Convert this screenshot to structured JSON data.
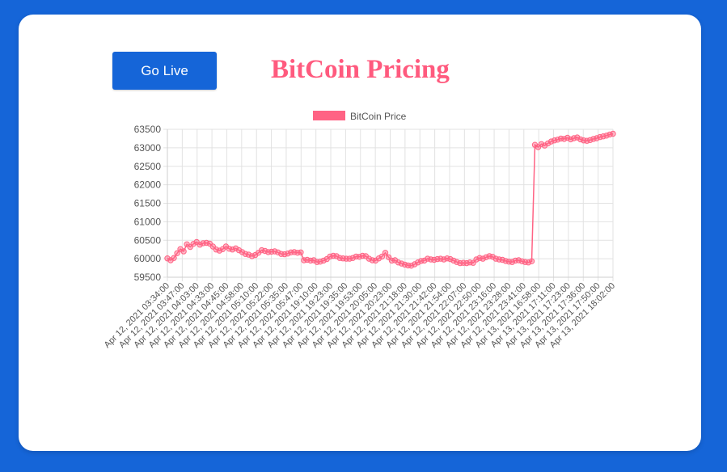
{
  "header": {
    "live_button_label": "Go Live",
    "title": "BitCoin Pricing"
  },
  "colors": {
    "background": "#1565d8",
    "button": "#1565d8",
    "title": "#ff5a7e",
    "series": "#ff6384"
  },
  "chart_data": {
    "type": "line",
    "legend": {
      "position": "top",
      "labels": [
        "BitCoin Price"
      ]
    },
    "grid": true,
    "ylim": [
      59500,
      63500
    ],
    "yticks": [
      63500,
      63000,
      62500,
      62000,
      61500,
      61000,
      60500,
      60000,
      59500
    ],
    "xticks": [
      "Apr 12, 2021 03:34:00",
      "Apr 12, 2021 03:47:00",
      "Apr 12, 2021 04:03:00",
      "Apr 12, 2021 04:33:00",
      "Apr 12, 2021 04:45:00",
      "Apr 12, 2021 04:58:00",
      "Apr 12, 2021 05:10:00",
      "Apr 12, 2021 05:22:00",
      "Apr 12, 2021 05:35:00",
      "Apr 12, 2021 05:47:00",
      "Apr 12, 2021 19:10:00",
      "Apr 12, 2021 19:23:00",
      "Apr 12, 2021 19:35:00",
      "Apr 12, 2021 19:53:00",
      "Apr 12, 2021 20:05:00",
      "Apr 12, 2021 20:23:00",
      "Apr 12, 2021 21:18:00",
      "Apr 12, 2021 21:30:00",
      "Apr 12, 2021 21:42:00",
      "Apr 12, 2021 21:54:00",
      "Apr 12, 2021 22:07:00",
      "Apr 12, 2021 22:50:00",
      "Apr 12, 2021 23:16:00",
      "Apr 12, 2021 23:28:00",
      "Apr 12, 2021 23:41:00",
      "Apr 13, 2021 16:58:00",
      "Apr 13, 2021 17:11:00",
      "Apr 13, 2021 17:23:00",
      "Apr 13, 2021 17:36:00",
      "Apr 13, 2021 17:50:00",
      "Apr 13, 2021 18:02:00"
    ],
    "series": [
      {
        "name": "BitCoin Price",
        "values": [
          60010,
          59960,
          60020,
          60150,
          60260,
          60200,
          60390,
          60320,
          60400,
          60450,
          60380,
          60420,
          60430,
          60410,
          60330,
          60250,
          60220,
          60260,
          60330,
          60270,
          60250,
          60280,
          60230,
          60180,
          60130,
          60110,
          60070,
          60100,
          60160,
          60230,
          60210,
          60180,
          60190,
          60200,
          60170,
          60130,
          60120,
          60140,
          60170,
          60180,
          60160,
          60170,
          59960,
          59970,
          59950,
          59960,
          59910,
          59920,
          59950,
          59990,
          60060,
          60080,
          60070,
          60020,
          60010,
          60000,
          60000,
          60020,
          60060,
          60050,
          60080,
          60070,
          60000,
          59960,
          59950,
          60010,
          60060,
          60160,
          60040,
          59950,
          59960,
          59900,
          59870,
          59840,
          59820,
          59810,
          59850,
          59900,
          59940,
          59950,
          60000,
          59980,
          59970,
          59990,
          60000,
          59980,
          60010,
          59990,
          59950,
          59910,
          59880,
          59890,
          59880,
          59900,
          59890,
          59980,
          60020,
          60000,
          60040,
          60070,
          60050,
          60000,
          59980,
          59970,
          59940,
          59920,
          59910,
          59950,
          59960,
          59930,
          59910,
          59900,
          59930,
          63080,
          63020,
          63100,
          63060,
          63120,
          63170,
          63200,
          63220,
          63250,
          63240,
          63270,
          63230,
          63260,
          63280,
          63230,
          63200,
          63190,
          63210,
          63240,
          63260,
          63290,
          63310,
          63330,
          63360,
          63380
        ]
      }
    ]
  }
}
